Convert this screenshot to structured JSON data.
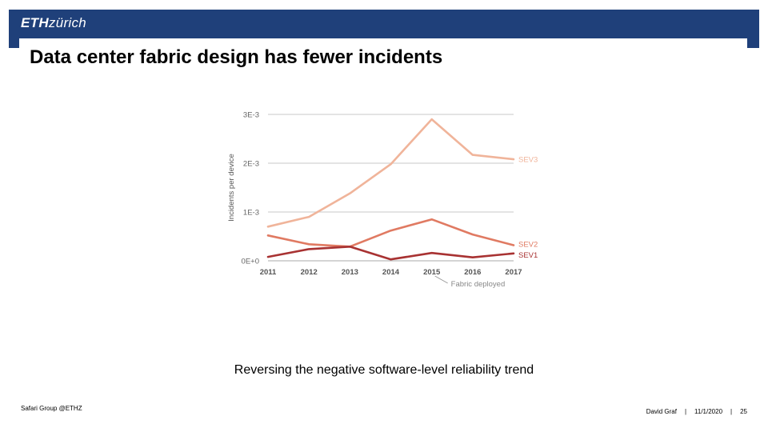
{
  "header": {
    "logo_eth": "ETH",
    "logo_zurich": "zürich",
    "bar_color": "#1f407a"
  },
  "slide": {
    "title": "Data center fabric design has fewer incidents",
    "caption": "Reversing the negative software-level reliability trend"
  },
  "footer": {
    "left": "Safari Group @ETHZ",
    "presenter": "David Graf",
    "separator": "|",
    "date": "11/1/2020",
    "page": "25"
  },
  "chart_data": {
    "type": "line",
    "x": [
      2011,
      2012,
      2013,
      2014,
      2015,
      2016,
      2017
    ],
    "x_tick_labels": [
      "2011",
      "2012",
      "2013",
      "2014",
      "2015",
      "2016",
      "2017"
    ],
    "ylabel": "Incidents per device",
    "xlabel": "",
    "ylim": [
      0,
      0.003
    ],
    "y_ticks": [
      0,
      0.001,
      0.002,
      0.003
    ],
    "y_tick_labels": [
      "0E+0",
      "1E-3",
      "2E-3",
      "3E-3"
    ],
    "grid": true,
    "series": [
      {
        "name": "SEV3",
        "values": [
          0.0007,
          0.0009,
          0.00138,
          0.00198,
          0.0029,
          0.00217,
          0.00208
        ],
        "color": "#f0b49a"
      },
      {
        "name": "SEV2",
        "values": [
          0.00052,
          0.00034,
          0.00029,
          0.00062,
          0.00085,
          0.00054,
          0.00032
        ],
        "color": "#e07a62"
      },
      {
        "name": "SEV1",
        "values": [
          8e-05,
          0.00024,
          0.00029,
          3e-05,
          0.00016,
          7e-05,
          0.00015
        ],
        "color": "#a83232"
      }
    ],
    "annotations": [
      {
        "text": "Fabric deployed",
        "x": 2015
      }
    ]
  }
}
